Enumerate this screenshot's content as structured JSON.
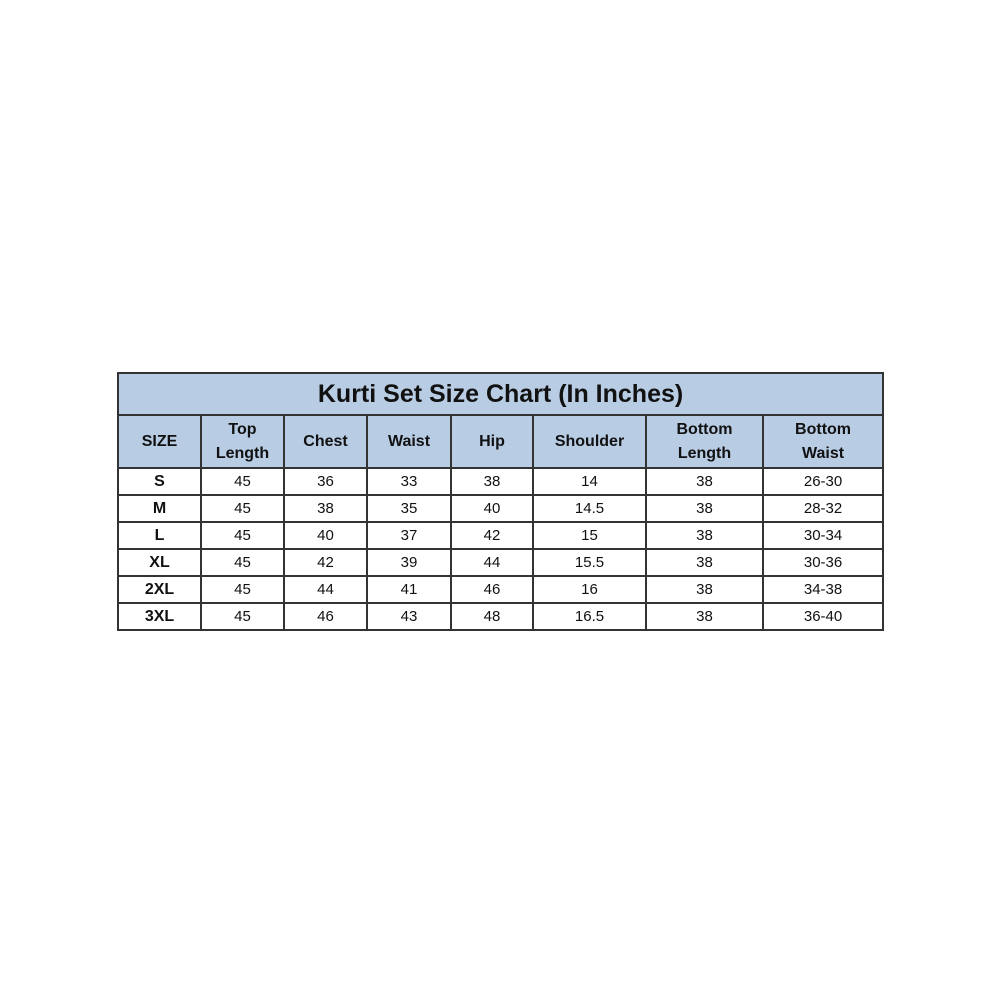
{
  "title": "Kurti Set Size Chart (In Inches)",
  "colors": {
    "header_bg": "#b8cce4",
    "border": "#333333"
  },
  "headers": [
    [
      "SIZE"
    ],
    [
      "Top",
      "Length"
    ],
    [
      "Chest"
    ],
    [
      "Waist"
    ],
    [
      "Hip"
    ],
    [
      "Shoulder"
    ],
    [
      "Bottom",
      "Length"
    ],
    [
      "Bottom",
      "Waist"
    ]
  ],
  "rows": [
    [
      "S",
      "45",
      "36",
      "33",
      "38",
      "14",
      "38",
      "26-30"
    ],
    [
      "M",
      "45",
      "38",
      "35",
      "40",
      "14.5",
      "38",
      "28-32"
    ],
    [
      "L",
      "45",
      "40",
      "37",
      "42",
      "15",
      "38",
      "30-34"
    ],
    [
      "XL",
      "45",
      "42",
      "39",
      "44",
      "15.5",
      "38",
      "30-36"
    ],
    [
      "2XL",
      "45",
      "44",
      "41",
      "46",
      "16",
      "38",
      "34-38"
    ],
    [
      "3XL",
      "45",
      "46",
      "43",
      "48",
      "16.5",
      "38",
      "36-40"
    ]
  ]
}
